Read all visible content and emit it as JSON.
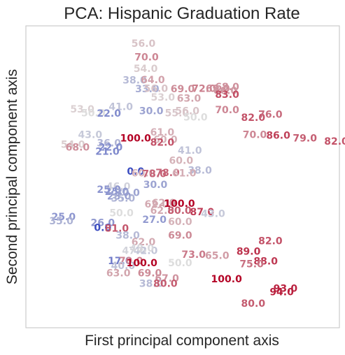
{
  "chart_data": {
    "type": "scatter",
    "title": "PCA: Hispanic Graduation Rate",
    "xlabel": "First principal component axis",
    "ylabel": "Second principal component axis",
    "grid": false,
    "legend": "none",
    "xlim": [
      0,
      100
    ],
    "ylim": [
      0,
      100
    ],
    "colormap": "coolwarm",
    "color_range": [
      0,
      100
    ],
    "colors": {
      "low": "#3b4cc0",
      "mid": "#dddddd",
      "high": "#b40426"
    },
    "points": [
      {
        "x": 37.5,
        "y": 94.0,
        "label": "56.0",
        "value": 56
      },
      {
        "x": 38.5,
        "y": 89.5,
        "label": "70.0",
        "value": 70
      },
      {
        "x": 38.2,
        "y": 85.7,
        "label": "54.0",
        "value": 54
      },
      {
        "x": 34.7,
        "y": 81.8,
        "label": "38.0",
        "value": 38
      },
      {
        "x": 40.5,
        "y": 82.0,
        "label": "64.0",
        "value": 64
      },
      {
        "x": 38.7,
        "y": 78.9,
        "label": "33.0",
        "value": 33
      },
      {
        "x": 41.5,
        "y": 79.1,
        "label": "56.0",
        "value": 56
      },
      {
        "x": 50.0,
        "y": 78.9,
        "label": "69.0",
        "value": 69
      },
      {
        "x": 56.8,
        "y": 79.1,
        "label": "72.0",
        "value": 72
      },
      {
        "x": 61.2,
        "y": 79.1,
        "label": "69.0",
        "value": 69
      },
      {
        "x": 64.2,
        "y": 79.6,
        "label": "68.0",
        "value": 68
      },
      {
        "x": 63.6,
        "y": 78.4,
        "label": "66.0",
        "value": 66
      },
      {
        "x": 64.2,
        "y": 77.1,
        "label": "83.0",
        "value": 83
      },
      {
        "x": 43.7,
        "y": 76.2,
        "label": "53.0",
        "value": 53
      },
      {
        "x": 52.0,
        "y": 75.8,
        "label": "63.0",
        "value": 63
      },
      {
        "x": 30.3,
        "y": 73.0,
        "label": "41.0",
        "value": 41
      },
      {
        "x": 40.0,
        "y": 71.6,
        "label": "30.0",
        "value": 30
      },
      {
        "x": 48.2,
        "y": 71.0,
        "label": "55.0",
        "value": 55
      },
      {
        "x": 51.5,
        "y": 71.6,
        "label": "56.0",
        "value": 56
      },
      {
        "x": 54.1,
        "y": 69.6,
        "label": "50.0",
        "value": 50
      },
      {
        "x": 64.2,
        "y": 72.0,
        "label": "70.0",
        "value": 70
      },
      {
        "x": 18.0,
        "y": 72.2,
        "label": "53.0",
        "value": 53
      },
      {
        "x": 21.5,
        "y": 71.0,
        "label": "50.0",
        "value": 50
      },
      {
        "x": 26.5,
        "y": 70.8,
        "label": "22.0",
        "value": 22
      },
      {
        "x": 72.5,
        "y": 69.4,
        "label": "82.0",
        "value": 82
      },
      {
        "x": 78.0,
        "y": 70.5,
        "label": "76.0",
        "value": 76
      },
      {
        "x": 20.5,
        "y": 63.8,
        "label": "43.0",
        "value": 43
      },
      {
        "x": 43.5,
        "y": 64.6,
        "label": "61.0",
        "value": 61
      },
      {
        "x": 73.0,
        "y": 63.8,
        "label": "70.0",
        "value": 70
      },
      {
        "x": 80.5,
        "y": 63.5,
        "label": "86.0",
        "value": 86
      },
      {
        "x": 89.0,
        "y": 62.6,
        "label": "79.0",
        "value": 79
      },
      {
        "x": 99.0,
        "y": 61.6,
        "label": "82.0",
        "value": 82
      },
      {
        "x": 35.0,
        "y": 62.6,
        "label": "100.0",
        "value": 100
      },
      {
        "x": 44.5,
        "y": 62.2,
        "label": "60.0",
        "value": 60
      },
      {
        "x": 43.5,
        "y": 61.2,
        "label": "82.0",
        "value": 82
      },
      {
        "x": 26.5,
        "y": 61.0,
        "label": "36.0",
        "value": 36
      },
      {
        "x": 15.0,
        "y": 60.5,
        "label": "54.0",
        "value": 54
      },
      {
        "x": 16.5,
        "y": 59.6,
        "label": "68.0",
        "value": 68
      },
      {
        "x": 27.0,
        "y": 59.6,
        "label": "22.0",
        "value": 22
      },
      {
        "x": 26.0,
        "y": 58.2,
        "label": "21.0",
        "value": 21
      },
      {
        "x": 52.3,
        "y": 58.6,
        "label": "41.0",
        "value": 41
      },
      {
        "x": 49.5,
        "y": 55.2,
        "label": "60.0",
        "value": 60
      },
      {
        "x": 55.5,
        "y": 52.0,
        "label": "38.0",
        "value": 38
      },
      {
        "x": 35.0,
        "y": 51.6,
        "label": "0.0",
        "value": 0
      },
      {
        "x": 37.5,
        "y": 51.0,
        "label": "60.0",
        "value": 60
      },
      {
        "x": 41.0,
        "y": 50.8,
        "label": "78.0",
        "value": 78
      },
      {
        "x": 45.2,
        "y": 51.2,
        "label": "78.0",
        "value": 78
      },
      {
        "x": 50.5,
        "y": 51.0,
        "label": "61.0",
        "value": 61
      },
      {
        "x": 41.3,
        "y": 47.2,
        "label": "30.0",
        "value": 30
      },
      {
        "x": 29.5,
        "y": 46.6,
        "label": "46.0",
        "value": 46
      },
      {
        "x": 26.5,
        "y": 45.6,
        "label": "25.0",
        "value": 25
      },
      {
        "x": 29.0,
        "y": 44.9,
        "label": "25.0",
        "value": 25
      },
      {
        "x": 32.5,
        "y": 44.6,
        "label": "30.0",
        "value": 30
      },
      {
        "x": 29.7,
        "y": 43.4,
        "label": "28.0",
        "value": 28
      },
      {
        "x": 31.0,
        "y": 42.7,
        "label": "35.0",
        "value": 35
      },
      {
        "x": 44.0,
        "y": 41.2,
        "label": "62.0",
        "value": 62
      },
      {
        "x": 41.7,
        "y": 40.7,
        "label": "62.0",
        "value": 62
      },
      {
        "x": 49.0,
        "y": 41.0,
        "label": "100.0",
        "value": 100
      },
      {
        "x": 43.5,
        "y": 38.6,
        "label": "62.0",
        "value": 62
      },
      {
        "x": 49.0,
        "y": 38.6,
        "label": "80.0",
        "value": 80
      },
      {
        "x": 56.2,
        "y": 38.2,
        "label": "87.0",
        "value": 87
      },
      {
        "x": 59.7,
        "y": 37.6,
        "label": "43.0",
        "value": 43
      },
      {
        "x": 30.5,
        "y": 37.8,
        "label": "50.0",
        "value": 50
      },
      {
        "x": 12.0,
        "y": 36.6,
        "label": "25.0",
        "value": 25
      },
      {
        "x": 11.3,
        "y": 35.2,
        "label": "35.0",
        "value": 35
      },
      {
        "x": 41.0,
        "y": 35.7,
        "label": "27.0",
        "value": 27
      },
      {
        "x": 49.2,
        "y": 34.9,
        "label": "60.0",
        "value": 60
      },
      {
        "x": 24.5,
        "y": 34.6,
        "label": "26.0",
        "value": 26
      },
      {
        "x": 24.5,
        "y": 33.0,
        "label": "0.0",
        "value": 0
      },
      {
        "x": 29.0,
        "y": 32.8,
        "label": "81.0",
        "value": 81
      },
      {
        "x": 32.5,
        "y": 30.4,
        "label": "38.0",
        "value": 38
      },
      {
        "x": 49.2,
        "y": 30.4,
        "label": "69.0",
        "value": 69
      },
      {
        "x": 37.5,
        "y": 28.2,
        "label": "62.0",
        "value": 62
      },
      {
        "x": 34.5,
        "y": 25.3,
        "label": "47.0",
        "value": 47
      },
      {
        "x": 38.2,
        "y": 25.3,
        "label": "42.0",
        "value": 42
      },
      {
        "x": 37.0,
        "y": 26.1,
        "label": "48.0",
        "value": 48
      },
      {
        "x": 78.0,
        "y": 28.6,
        "label": "82.0",
        "value": 82
      },
      {
        "x": 71.0,
        "y": 25.1,
        "label": "89.0",
        "value": 89
      },
      {
        "x": 53.5,
        "y": 24.1,
        "label": "73.0",
        "value": 73
      },
      {
        "x": 61.0,
        "y": 23.7,
        "label": "65.0",
        "value": 65
      },
      {
        "x": 30.0,
        "y": 22.0,
        "label": "17.0",
        "value": 17
      },
      {
        "x": 33.5,
        "y": 22.0,
        "label": "70.0",
        "value": 70
      },
      {
        "x": 31.0,
        "y": 20.4,
        "label": "40.0",
        "value": 40
      },
      {
        "x": 37.0,
        "y": 21.3,
        "label": "100.0",
        "value": 100
      },
      {
        "x": 49.2,
        "y": 21.3,
        "label": "50.0",
        "value": 50
      },
      {
        "x": 76.5,
        "y": 21.9,
        "label": "88.0",
        "value": 88
      },
      {
        "x": 72.0,
        "y": 20.9,
        "label": "75.0",
        "value": 75
      },
      {
        "x": 29.5,
        "y": 17.9,
        "label": "63.0",
        "value": 63
      },
      {
        "x": 39.5,
        "y": 17.9,
        "label": "69.0",
        "value": 69
      },
      {
        "x": 45.0,
        "y": 16.2,
        "label": "67.0",
        "value": 67
      },
      {
        "x": 64.0,
        "y": 16.0,
        "label": "100.0",
        "value": 100
      },
      {
        "x": 40.0,
        "y": 14.5,
        "label": "38.0",
        "value": 38
      },
      {
        "x": 44.5,
        "y": 14.5,
        "label": "80.0",
        "value": 80
      },
      {
        "x": 82.8,
        "y": 12.9,
        "label": "93.0",
        "value": 93
      },
      {
        "x": 81.6,
        "y": 11.7,
        "label": "94.0",
        "value": 94
      },
      {
        "x": 72.5,
        "y": 7.9,
        "label": "80.0",
        "value": 80
      }
    ]
  }
}
